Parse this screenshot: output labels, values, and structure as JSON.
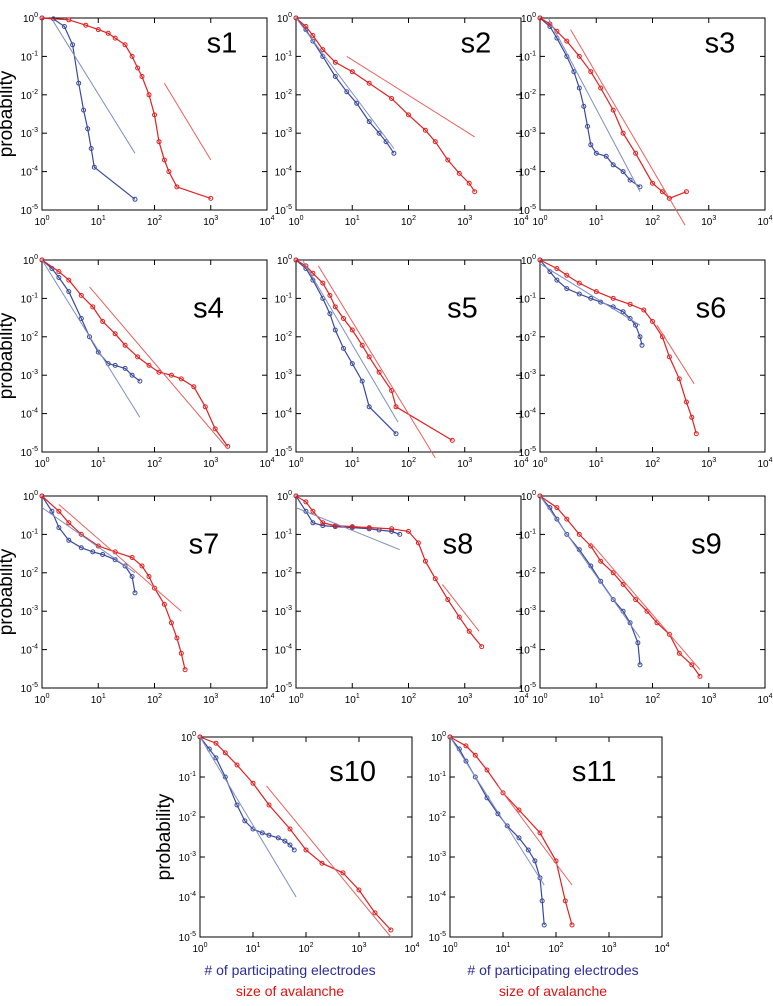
{
  "figure": {
    "ylabel": "probability",
    "xlabel_electrodes": "# of participating electrodes",
    "xlabel_size": "size of avalanche",
    "tick_base": "10",
    "colors": {
      "electrodes": "#3b4a9c",
      "size": "#e02020",
      "fit_electrodes": "#7f8fc4",
      "fit_size": "#e86060",
      "axis": "#000000"
    }
  },
  "chart_data": [
    {
      "type": "line",
      "title": "s1",
      "xscale": "log",
      "yscale": "log",
      "xlim": [
        1,
        10000
      ],
      "ylim": [
        1e-05,
        1
      ],
      "series": [
        {
          "name": "# of participating electrodes",
          "x": [
            1,
            1.6,
            2.5,
            3.5,
            4.5,
            5.5,
            6.5,
            7.5,
            8.5,
            45
          ],
          "y": [
            1,
            0.95,
            0.6,
            0.2,
            0.02,
            0.004,
            0.0013,
            0.0004,
            0.00013,
            1.9e-05
          ]
        },
        {
          "name": "size of avalanche",
          "x": [
            1,
            3,
            6,
            10,
            15,
            20,
            30,
            40,
            50,
            60,
            80,
            100,
            120,
            150,
            180,
            250,
            1000
          ],
          "y": [
            1,
            0.9,
            0.65,
            0.5,
            0.4,
            0.3,
            0.2,
            0.1,
            0.05,
            0.03,
            0.01,
            0.003,
            0.0006,
            0.0002,
            0.0001,
            4e-05,
            2e-05
          ]
        },
        {
          "name": "fit electrodes",
          "x": [
            1.6,
            45
          ],
          "y": [
            0.8,
            0.0003
          ]
        },
        {
          "name": "fit size",
          "x": [
            150,
            1000
          ],
          "y": [
            0.02,
            0.0002
          ]
        }
      ]
    },
    {
      "type": "line",
      "title": "s2",
      "xscale": "log",
      "yscale": "log",
      "xlim": [
        1,
        10000
      ],
      "ylim": [
        1e-05,
        1
      ],
      "series": [
        {
          "name": "# of participating electrodes",
          "x": [
            1,
            1.5,
            2,
            3,
            5,
            8,
            12,
            20,
            30,
            40,
            55
          ],
          "y": [
            1,
            0.5,
            0.25,
            0.1,
            0.03,
            0.012,
            0.006,
            0.002,
            0.001,
            0.0006,
            0.0003
          ]
        },
        {
          "name": "size of avalanche",
          "x": [
            1,
            1.5,
            2,
            3,
            5,
            10,
            20,
            50,
            100,
            200,
            300,
            500,
            800,
            1200,
            1500
          ],
          "y": [
            1,
            0.6,
            0.35,
            0.15,
            0.07,
            0.04,
            0.02,
            0.008,
            0.003,
            0.0012,
            0.0006,
            0.0002,
            9e-05,
            5e-05,
            3e-05
          ]
        },
        {
          "name": "fit electrodes",
          "x": [
            1,
            55
          ],
          "y": [
            1,
            0.0004
          ]
        },
        {
          "name": "fit size",
          "x": [
            8,
            1500
          ],
          "y": [
            0.1,
            0.0008
          ]
        }
      ]
    },
    {
      "type": "line",
      "title": "s3",
      "xscale": "log",
      "yscale": "log",
      "xlim": [
        1,
        10000
      ],
      "ylim": [
        1e-05,
        1
      ],
      "series": [
        {
          "name": "# of participating electrodes",
          "x": [
            1,
            1.5,
            2,
            3,
            4,
            5,
            6,
            7,
            8,
            10,
            15,
            20,
            30,
            40,
            60
          ],
          "y": [
            1,
            0.6,
            0.3,
            0.1,
            0.04,
            0.015,
            0.005,
            0.0015,
            0.0005,
            0.0003,
            0.00025,
            0.00015,
            0.0001,
            6e-05,
            4e-05
          ]
        },
        {
          "name": "size of avalanche",
          "x": [
            1,
            1.5,
            2,
            3,
            5,
            8,
            12,
            20,
            30,
            50,
            100,
            150,
            200,
            400
          ],
          "y": [
            1,
            0.7,
            0.45,
            0.25,
            0.1,
            0.04,
            0.015,
            0.004,
            0.001,
            0.0003,
            5e-05,
            3e-05,
            2e-05,
            3e-05
          ]
        },
        {
          "name": "fit electrodes",
          "x": [
            1.4,
            60
          ],
          "y": [
            1,
            3e-05
          ]
        },
        {
          "name": "fit size",
          "x": [
            3.5,
            380
          ],
          "y": [
            0.5,
            4e-06
          ]
        }
      ]
    },
    {
      "type": "line",
      "title": "s4",
      "xscale": "log",
      "yscale": "log",
      "xlim": [
        1,
        10000
      ],
      "ylim": [
        1e-05,
        1
      ],
      "series": [
        {
          "name": "# of participating electrodes",
          "x": [
            1,
            1.5,
            2,
            3,
            5,
            7,
            10,
            15,
            20,
            30,
            40,
            55
          ],
          "y": [
            1,
            0.6,
            0.35,
            0.15,
            0.03,
            0.01,
            0.004,
            0.002,
            0.0018,
            0.0015,
            0.001,
            0.0007
          ]
        },
        {
          "name": "size of avalanche",
          "x": [
            1,
            2,
            3,
            5,
            8,
            12,
            20,
            30,
            50,
            80,
            120,
            200,
            300,
            500,
            800,
            1200,
            2000
          ],
          "y": [
            1,
            0.5,
            0.3,
            0.12,
            0.06,
            0.025,
            0.012,
            0.006,
            0.003,
            0.0018,
            0.0012,
            0.001,
            0.0008,
            0.0005,
            0.00015,
            4e-05,
            1.4e-05
          ]
        },
        {
          "name": "fit electrodes",
          "x": [
            1,
            55
          ],
          "y": [
            1,
            8e-05
          ]
        },
        {
          "name": "fit size",
          "x": [
            7,
            2000
          ],
          "y": [
            0.2,
            1.2e-05
          ]
        }
      ]
    },
    {
      "type": "line",
      "title": "s5",
      "xscale": "log",
      "yscale": "log",
      "xlim": [
        1,
        10000
      ],
      "ylim": [
        1e-05,
        1
      ],
      "series": [
        {
          "name": "# of participating electrodes",
          "x": [
            1,
            1.5,
            2,
            3,
            4,
            5,
            7,
            10,
            15,
            20,
            60
          ],
          "y": [
            1,
            0.6,
            0.3,
            0.1,
            0.04,
            0.015,
            0.005,
            0.002,
            0.0007,
            0.00015,
            3e-05
          ]
        },
        {
          "name": "size of avalanche",
          "x": [
            1,
            1.5,
            2,
            3,
            4,
            5,
            7,
            10,
            15,
            20,
            30,
            50,
            60,
            600
          ],
          "y": [
            1,
            0.7,
            0.45,
            0.25,
            0.12,
            0.06,
            0.03,
            0.015,
            0.006,
            0.003,
            0.0012,
            0.0004,
            0.00015,
            2e-05
          ]
        },
        {
          "name": "fit electrodes",
          "x": [
            1.3,
            65
          ],
          "y": [
            1,
            6e-05
          ]
        },
        {
          "name": "fit size",
          "x": [
            2.5,
            300
          ],
          "y": [
            0.7,
            7e-06
          ]
        }
      ]
    },
    {
      "type": "line",
      "title": "s6",
      "xscale": "log",
      "yscale": "log",
      "xlim": [
        1,
        10000
      ],
      "ylim": [
        1e-05,
        1
      ],
      "series": [
        {
          "name": "# of participating electrodes",
          "x": [
            1,
            1.5,
            2,
            3,
            5,
            8,
            12,
            20,
            30,
            40,
            50,
            60,
            65
          ],
          "y": [
            1,
            0.5,
            0.3,
            0.18,
            0.13,
            0.1,
            0.08,
            0.06,
            0.045,
            0.03,
            0.02,
            0.01,
            0.006
          ]
        },
        {
          "name": "size of avalanche",
          "x": [
            1,
            2,
            3,
            5,
            10,
            20,
            40,
            70,
            100,
            150,
            200,
            300,
            400,
            500,
            600
          ],
          "y": [
            1,
            0.6,
            0.4,
            0.25,
            0.15,
            0.1,
            0.07,
            0.05,
            0.025,
            0.01,
            0.003,
            0.0008,
            0.0002,
            8e-05,
            3e-05
          ]
        },
        {
          "name": "fit electrodes",
          "x": [
            1,
            60
          ],
          "y": [
            0.8,
            0.02
          ]
        },
        {
          "name": "fit size",
          "x": [
            120,
            550
          ],
          "y": [
            0.02,
            0.0006
          ]
        }
      ]
    },
    {
      "type": "line",
      "title": "s7",
      "xscale": "log",
      "yscale": "log",
      "xlim": [
        1,
        10000
      ],
      "ylim": [
        1e-05,
        1
      ],
      "series": [
        {
          "name": "# of participating electrodes",
          "x": [
            1,
            1.5,
            2,
            3,
            5,
            8,
            12,
            20,
            30,
            40,
            45
          ],
          "y": [
            1,
            0.4,
            0.15,
            0.07,
            0.045,
            0.035,
            0.03,
            0.022,
            0.015,
            0.008,
            0.003
          ]
        },
        {
          "name": "size of avalanche",
          "x": [
            1,
            2,
            3,
            5,
            10,
            20,
            40,
            60,
            80,
            100,
            150,
            200,
            250,
            300,
            350
          ],
          "y": [
            1,
            0.4,
            0.2,
            0.1,
            0.05,
            0.035,
            0.025,
            0.015,
            0.008,
            0.004,
            0.0015,
            0.0005,
            0.0002,
            8e-05,
            3e-05
          ]
        },
        {
          "name": "fit electrodes",
          "x": [
            1,
            45
          ],
          "y": [
            0.5,
            0.01
          ]
        },
        {
          "name": "fit size",
          "x": [
            2,
            300
          ],
          "y": [
            0.6,
            0.001
          ]
        }
      ]
    },
    {
      "type": "line",
      "title": "s8",
      "xscale": "log",
      "yscale": "log",
      "xlim": [
        1,
        10000
      ],
      "ylim": [
        1e-05,
        1
      ],
      "series": [
        {
          "name": "# of participating electrodes",
          "x": [
            1,
            1.5,
            2,
            3,
            5,
            10,
            20,
            30,
            50,
            70
          ],
          "y": [
            1,
            0.4,
            0.2,
            0.17,
            0.16,
            0.15,
            0.14,
            0.13,
            0.12,
            0.1
          ]
        },
        {
          "name": "size of avalanche",
          "x": [
            1,
            1.5,
            2,
            3,
            5,
            10,
            20,
            50,
            100,
            150,
            200,
            300,
            500,
            800,
            1200,
            2000
          ],
          "y": [
            1,
            0.7,
            0.4,
            0.2,
            0.17,
            0.16,
            0.15,
            0.14,
            0.12,
            0.06,
            0.02,
            0.007,
            0.002,
            0.0007,
            0.0003,
            0.00012
          ]
        },
        {
          "name": "fit electrodes",
          "x": [
            1,
            70
          ],
          "y": [
            0.5,
            0.04
          ]
        },
        {
          "name": "fit size",
          "x": [
            400,
            1800
          ],
          "y": [
            0.005,
            0.0003
          ]
        }
      ]
    },
    {
      "type": "line",
      "title": "s9",
      "xscale": "log",
      "yscale": "log",
      "xlim": [
        1,
        10000
      ],
      "ylim": [
        1e-05,
        1
      ],
      "series": [
        {
          "name": "# of participating electrodes",
          "x": [
            1,
            1.5,
            2,
            3,
            5,
            8,
            12,
            20,
            30,
            40,
            55,
            60
          ],
          "y": [
            1,
            0.5,
            0.25,
            0.1,
            0.04,
            0.015,
            0.006,
            0.002,
            0.001,
            0.0005,
            0.00015,
            4e-05
          ]
        },
        {
          "name": "size of avalanche",
          "x": [
            1,
            2,
            3,
            5,
            8,
            12,
            20,
            30,
            50,
            80,
            120,
            200,
            300,
            500,
            700
          ],
          "y": [
            1,
            0.5,
            0.25,
            0.1,
            0.05,
            0.02,
            0.01,
            0.005,
            0.002,
            0.001,
            0.0005,
            0.00025,
            8e-05,
            4e-05,
            2e-05
          ]
        },
        {
          "name": "fit electrodes",
          "x": [
            1,
            60
          ],
          "y": [
            1,
            0.0002
          ]
        },
        {
          "name": "fit size",
          "x": [
            8,
            700
          ],
          "y": [
            0.06,
            3e-05
          ]
        }
      ]
    },
    {
      "type": "line",
      "title": "s10",
      "xscale": "log",
      "yscale": "log",
      "xlim": [
        1,
        10000
      ],
      "ylim": [
        1e-05,
        1
      ],
      "series": [
        {
          "name": "# of participating electrodes",
          "x": [
            1,
            1.5,
            2,
            3,
            5,
            7,
            10,
            15,
            20,
            30,
            40,
            50,
            60
          ],
          "y": [
            1,
            0.5,
            0.3,
            0.1,
            0.02,
            0.008,
            0.005,
            0.004,
            0.0035,
            0.003,
            0.0025,
            0.002,
            0.0015
          ]
        },
        {
          "name": "size of avalanche",
          "x": [
            1,
            2,
            3,
            5,
            10,
            20,
            50,
            100,
            200,
            500,
            1000,
            2000,
            4000
          ],
          "y": [
            1,
            0.7,
            0.4,
            0.2,
            0.07,
            0.02,
            0.005,
            0.0015,
            0.0007,
            0.0004,
            0.00015,
            4e-05,
            1.5e-05
          ]
        },
        {
          "name": "fit electrodes",
          "x": [
            1,
            65
          ],
          "y": [
            1,
            0.0001
          ]
        },
        {
          "name": "fit size",
          "x": [
            18,
            4000
          ],
          "y": [
            0.06,
            1e-05
          ]
        }
      ]
    },
    {
      "type": "line",
      "title": "s11",
      "xscale": "log",
      "yscale": "log",
      "xlim": [
        1,
        10000
      ],
      "ylim": [
        1e-05,
        1
      ],
      "series": [
        {
          "name": "# of participating electrodes",
          "x": [
            1,
            1.5,
            2,
            3,
            5,
            8,
            12,
            20,
            30,
            40,
            50,
            55,
            60
          ],
          "y": [
            1,
            0.5,
            0.25,
            0.1,
            0.03,
            0.012,
            0.006,
            0.003,
            0.0015,
            0.0008,
            0.0003,
            8e-05,
            2e-05
          ]
        },
        {
          "name": "size of avalanche",
          "x": [
            1,
            2,
            3,
            5,
            10,
            20,
            50,
            100,
            150,
            200
          ],
          "y": [
            1,
            0.6,
            0.35,
            0.15,
            0.04,
            0.015,
            0.004,
            0.0008,
            8e-05,
            2e-05
          ]
        },
        {
          "name": "fit electrodes",
          "x": [
            1,
            60
          ],
          "y": [
            1,
            0.0002
          ]
        },
        {
          "name": "fit size",
          "x": [
            8,
            200
          ],
          "y": [
            0.06,
            0.0002
          ]
        }
      ]
    }
  ]
}
